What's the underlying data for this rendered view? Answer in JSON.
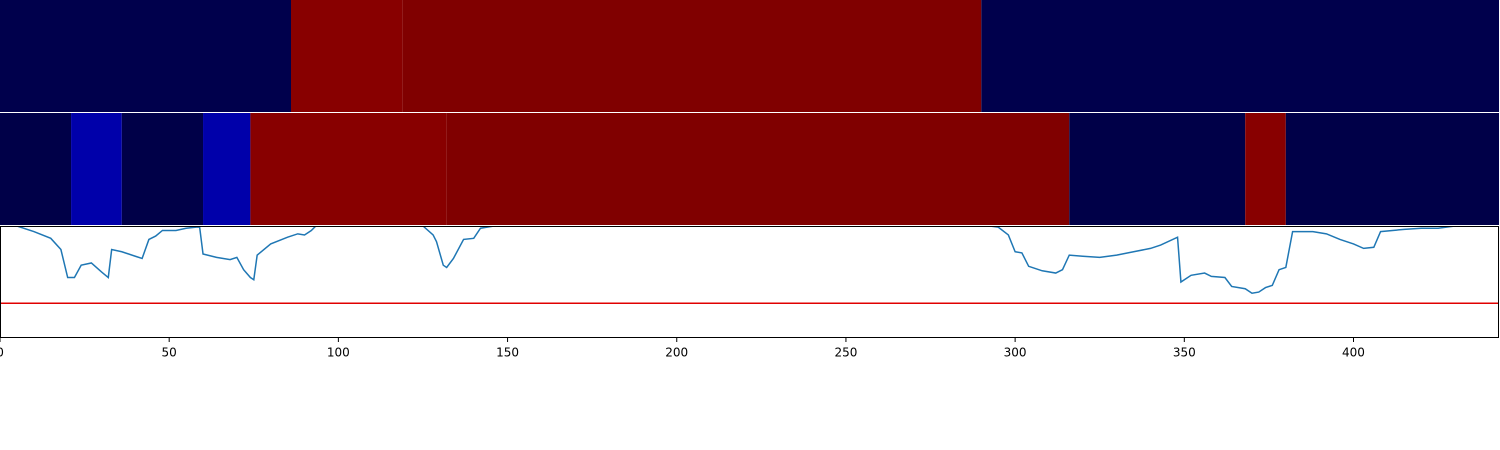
{
  "chart_data": [
    {
      "type": "heatmap",
      "xlim": [
        0,
        443
      ],
      "edges": [
        0,
        86,
        119,
        290,
        443
      ],
      "colors": [
        "#00004c",
        "#880000",
        "#800000",
        "#00004c"
      ]
    },
    {
      "type": "heatmap",
      "xlim": [
        0,
        443
      ],
      "edges": [
        0,
        21,
        36,
        60,
        74,
        132,
        316,
        368,
        380,
        443
      ],
      "colors": [
        "#000048",
        "#0000aa",
        "#000048",
        "#0000aa",
        "#880000",
        "#800000",
        "#000048",
        "#880000",
        "#000048"
      ]
    },
    {
      "type": "line",
      "xlim": [
        0,
        443
      ],
      "ylim": [
        0,
        1
      ],
      "xticks": [
        0,
        50,
        100,
        150,
        200,
        250,
        300,
        350,
        400
      ],
      "color": "#1f77b4",
      "hline": {
        "value": 0.31,
        "color": "#e00000"
      },
      "x": [
        0,
        5,
        10,
        15,
        18,
        20,
        22,
        24,
        27,
        30,
        32,
        33,
        36,
        40,
        42,
        44,
        46,
        48,
        52,
        55,
        58,
        59,
        60,
        64,
        68,
        70,
        72,
        74,
        75,
        76,
        80,
        85,
        88,
        90,
        92,
        94,
        125,
        128,
        129,
        131,
        132,
        134,
        137,
        140,
        142,
        146,
        150,
        290,
        295,
        298,
        300,
        302,
        304,
        308,
        312,
        314,
        316,
        320,
        325,
        330,
        335,
        340,
        343,
        348,
        349,
        352,
        356,
        358,
        362,
        364,
        368,
        370,
        372,
        374,
        376,
        378,
        380,
        382,
        388,
        392,
        396,
        400,
        403,
        406,
        408,
        415,
        420,
        425,
        430,
        435,
        443
      ],
      "values": [
        1.04,
        1.0,
        0.95,
        0.89,
        0.79,
        0.54,
        0.54,
        0.65,
        0.67,
        0.59,
        0.54,
        0.79,
        0.77,
        0.73,
        0.71,
        0.88,
        0.91,
        0.96,
        0.96,
        0.98,
        0.99,
        0.99,
        0.75,
        0.72,
        0.7,
        0.72,
        0.61,
        0.54,
        0.52,
        0.74,
        0.84,
        0.9,
        0.93,
        0.92,
        0.96,
        1.02,
        1.0,
        0.92,
        0.86,
        0.65,
        0.63,
        0.71,
        0.88,
        0.89,
        0.98,
        1.0,
        1.02,
        1.01,
        0.99,
        0.92,
        0.77,
        0.76,
        0.64,
        0.6,
        0.58,
        0.61,
        0.74,
        0.73,
        0.72,
        0.74,
        0.77,
        0.8,
        0.83,
        0.9,
        0.5,
        0.56,
        0.58,
        0.55,
        0.54,
        0.46,
        0.44,
        0.4,
        0.41,
        0.45,
        0.47,
        0.61,
        0.63,
        0.95,
        0.95,
        0.93,
        0.88,
        0.84,
        0.8,
        0.81,
        0.95,
        0.97,
        0.98,
        0.98,
        1.0,
        1.01,
        1.01
      ]
    }
  ]
}
